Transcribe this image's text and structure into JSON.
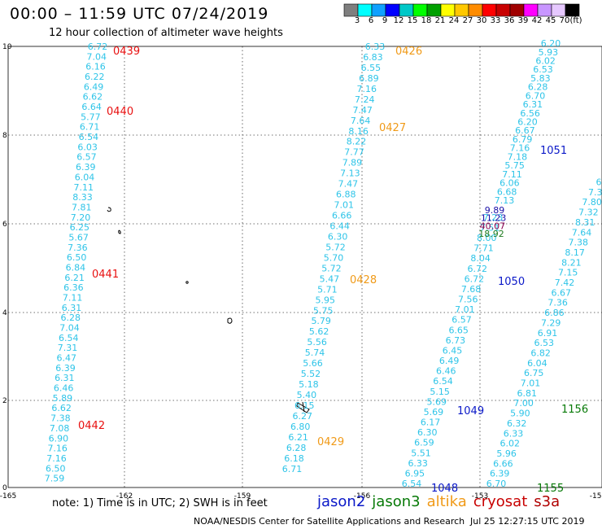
{
  "header": {
    "title": "00:00 – 11:59 UTC 07/24/2019",
    "subtitle": "12 hour collection of altimeter wave heights"
  },
  "colorbar": {
    "unit": "(ft)",
    "colors": [
      "#7f7f7f",
      "#00ffff",
      "#0fa0ff",
      "#0000ff",
      "#00c8c8",
      "#00ff00",
      "#00a000",
      "#ffff00",
      "#ffc800",
      "#ff8c00",
      "#ff0000",
      "#c80000",
      "#a00000",
      "#ff00ff",
      "#c896ff",
      "#e6c8ff",
      "#000000"
    ],
    "ticks": [
      "3",
      "6",
      "9",
      "12",
      "15",
      "18",
      "21",
      "24",
      "27",
      "30",
      "33",
      "36",
      "39",
      "42",
      "45",
      "70"
    ]
  },
  "map": {
    "y_ticks": [
      "10",
      "8",
      "6",
      "4",
      "2",
      "0"
    ],
    "x_ticks": [
      "-165",
      "-162",
      "-159",
      "-156",
      "-153",
      "-150"
    ],
    "tracks": [
      {
        "name": "track-a",
        "color": "#2ec4e8",
        "values": [
          "6.72",
          "7.04",
          "6.16",
          "6.22",
          "6.49",
          "6.62",
          "6.64",
          "5.77",
          "6.71",
          "6.54",
          "6.03",
          "6.57",
          "6.39",
          "6.04",
          "7.11",
          "8.33",
          "7.81",
          "7.20",
          "6.25",
          "5.67",
          "7.36",
          "6.50",
          "6.84",
          "6.21",
          "6.36",
          "7.11",
          "6.31",
          "6.28",
          "7.04",
          "6.54",
          "7.31",
          "6.47",
          "6.39",
          "6.31",
          "6.46",
          "5.89",
          "6.62",
          "7.38",
          "7.08",
          "6.90",
          "7.16",
          "7.16",
          "6.50",
          "7.59"
        ]
      },
      {
        "name": "track-b",
        "color": "#2ec4e8",
        "values": [
          "6.33",
          "6.83",
          "6.55",
          "6.89",
          "7.16",
          "7.24",
          "7.47",
          "7.64",
          "8.16",
          "8.22",
          "7.77",
          "7.89",
          "7.13",
          "7.47",
          "6.88",
          "7.01",
          "6.66",
          "6.44",
          "6.30",
          "5.72",
          "5.70",
          "5.72",
          "5.47",
          "5.71",
          "5.95",
          "5.75",
          "5.79",
          "5.62",
          "5.56",
          "5.74",
          "5.66",
          "5.52",
          "5.18",
          "5.40",
          "6.15",
          "6.27",
          "6.80",
          "6.21",
          "6.28",
          "6.18",
          "6.71"
        ]
      },
      {
        "name": "track-c",
        "color": "#2ec4e8",
        "values": [
          "6.54",
          "6.95",
          "6.33",
          "5.51",
          "6.59",
          "6.30",
          "6.17",
          "5.69",
          "5.69",
          "5.15",
          "6.54",
          "6.46",
          "6.49",
          "6.45",
          "6.73",
          "6.65",
          "6.57",
          "7.01",
          "7.56",
          "7.68",
          "6.72",
          "6.72",
          "8.04",
          "7.71",
          "8.00",
          "7.51",
          "7.23"
        ]
      },
      {
        "name": "track-c-peak",
        "color": "#2ec4e8",
        "values": [
          "18.92",
          "40.07",
          "11.23",
          "9.89"
        ]
      },
      {
        "name": "track-c-upper",
        "color": "#2ec4e8",
        "values": [
          "7.13",
          "6.68",
          "6.06",
          "7.11",
          "5.75",
          "7.18",
          "7.16",
          "6.79",
          "6.67",
          "6.20",
          "6.56",
          "6.31",
          "6.70",
          "6.28",
          "5.83",
          "6.53",
          "6.02",
          "5.93",
          "6.20"
        ]
      },
      {
        "name": "track-d",
        "color": "#2ec4e8",
        "values": [
          "6.70",
          "6.39",
          "6.66",
          "5.96",
          "6.02",
          "6.33",
          "6.32",
          "5.90",
          "7.00",
          "6.81",
          "7.01",
          "6.75",
          "6.04",
          "6.82",
          "6.53",
          "6.91",
          "7.29",
          "6.86",
          "7.36",
          "6.67",
          "7.42",
          "7.15",
          "8.21",
          "8.17",
          "7.38",
          "7.64",
          "8.31",
          "7.32",
          "7.80",
          "7.3",
          "6"
        ]
      }
    ],
    "time_labels": [
      {
        "text": "0439",
        "color": "#e81010"
      },
      {
        "text": "0440",
        "color": "#e81010"
      },
      {
        "text": "0441",
        "color": "#e81010"
      },
      {
        "text": "0442",
        "color": "#e81010"
      },
      {
        "text": "0426",
        "color": "#f09a18"
      },
      {
        "text": "0427",
        "color": "#f09a18"
      },
      {
        "text": "0428",
        "color": "#f09a18"
      },
      {
        "text": "0429",
        "color": "#f09a18"
      },
      {
        "text": "1051",
        "color": "#0a18c8"
      },
      {
        "text": "1050",
        "color": "#0a18c8"
      },
      {
        "text": "1049",
        "color": "#0a18c8"
      },
      {
        "text": "1048",
        "color": "#0a18c8"
      },
      {
        "text": "1156",
        "color": "#087a08"
      },
      {
        "text": "1155",
        "color": "#087a08"
      }
    ]
  },
  "footer": {
    "note": "note:  1) Time is in UTC;  2) SWH is in feet",
    "legend": [
      {
        "name": "jason2",
        "color": "#0a18c8"
      },
      {
        "name": "jason3",
        "color": "#087a08"
      },
      {
        "name": "altika",
        "color": "#f09a18"
      },
      {
        "name": "cryosat",
        "color": "#c80000"
      },
      {
        "name": "s3a",
        "color": "#b00000"
      }
    ],
    "credit": "NOAA/NESDIS Center for Satellite Applications and Research",
    "timestamp": "Jul 25 12:27:15 UTC 2019"
  }
}
